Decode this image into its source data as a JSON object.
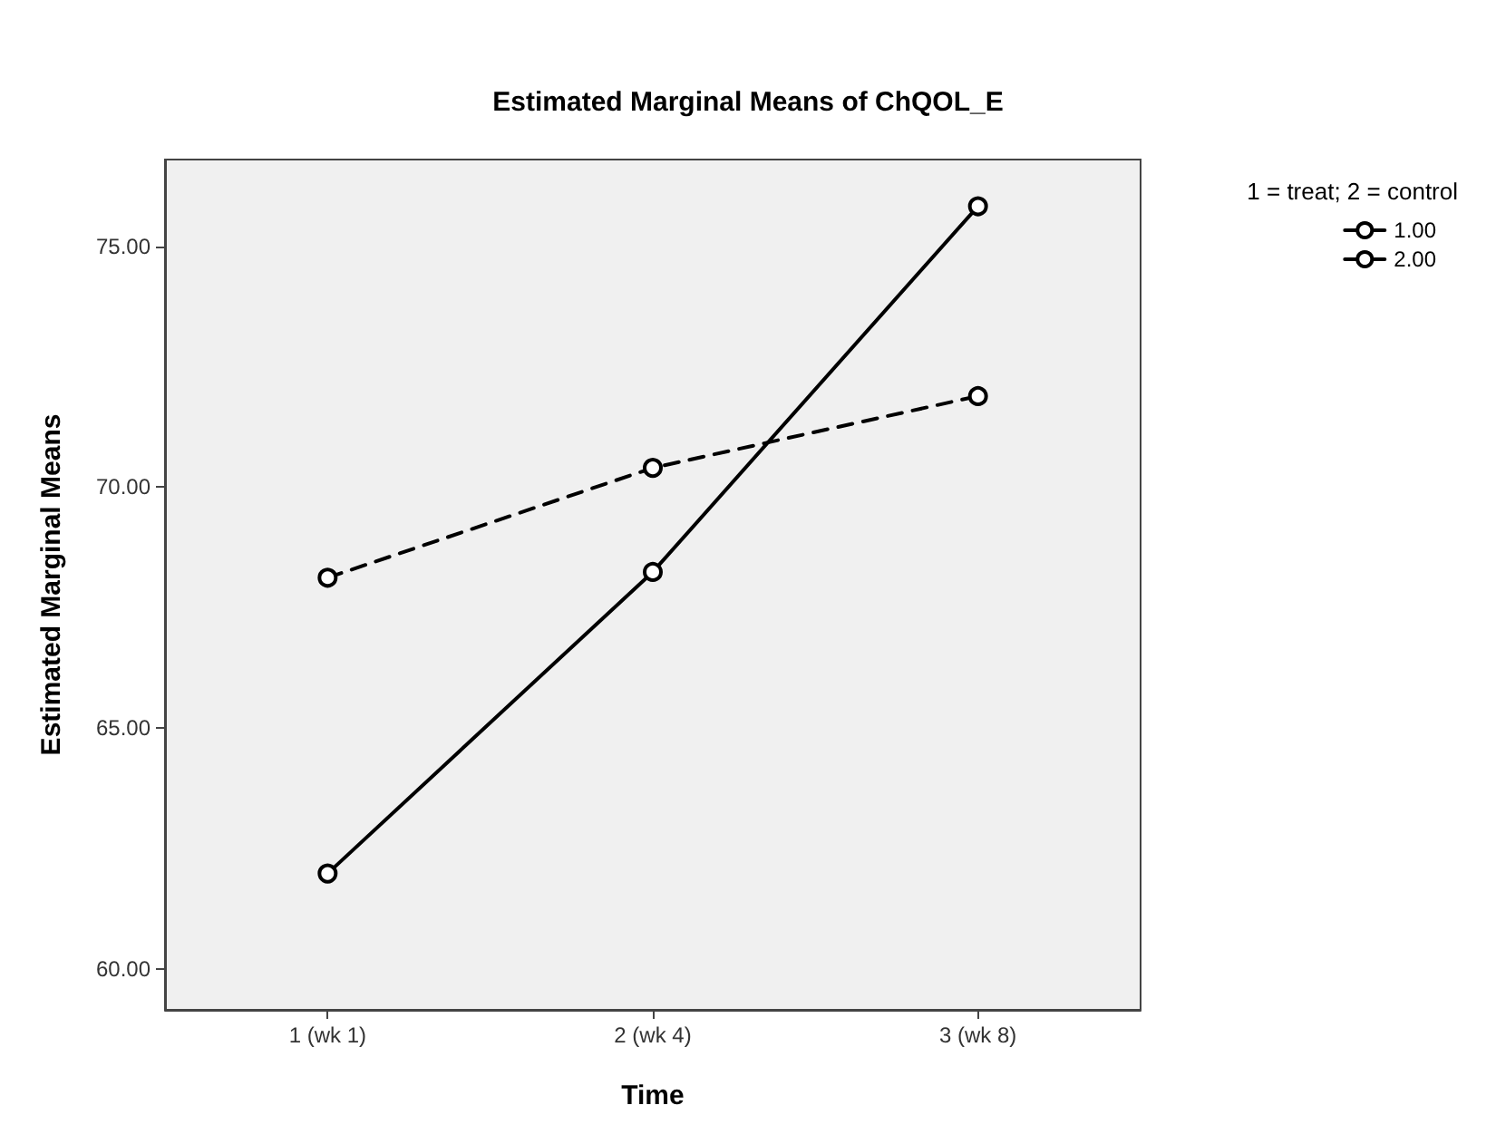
{
  "chart_data": {
    "type": "line",
    "title": "Estimated Marginal Means of ChQOL_E",
    "xlabel": "Time",
    "ylabel": "Estimated Marginal Means",
    "legend_title": "1 = treat; 2 = control",
    "categories": [
      "1 (wk 1)",
      "2 (wk 4)",
      "3 (wk 8)"
    ],
    "series": [
      {
        "name": "1.00",
        "color": "#000000",
        "line_style": "solid",
        "values": [
          61.98,
          68.24,
          75.83
        ]
      },
      {
        "name": "2.00",
        "color": "#000000",
        "line_style": "dashed",
        "values": [
          68.12,
          70.4,
          71.89
        ]
      }
    ],
    "ylim": [
      59.15,
      76.8
    ],
    "yticks": [
      {
        "value": 60,
        "label": "60.00"
      },
      {
        "value": 65,
        "label": "65.00"
      },
      {
        "value": 70,
        "label": "70.00"
      },
      {
        "value": 75,
        "label": "75.00"
      }
    ],
    "grid": false,
    "legend": "top right",
    "marker": "circle"
  }
}
